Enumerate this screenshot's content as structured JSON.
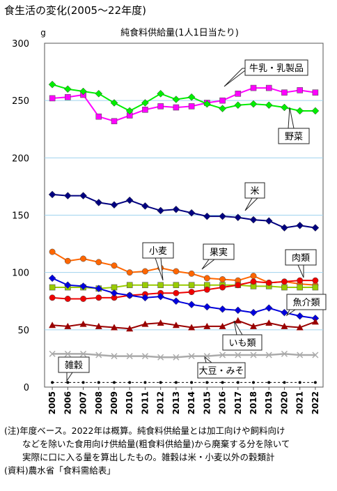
{
  "page_title": "食生活の変化(2005～22年度)",
  "notes": [
    "(注)年度ベース。2022年は概算。純食料供給量とは加工向けや飼料向け",
    "などを除いた食用向け供給量(粗食料供給量)から廃棄する分を除いて",
    "実際に口に入る量を算出したもの。雑穀は米・小麦以外の穀類計",
    "(資料)農水省「食料需給表」"
  ],
  "chart_data": {
    "type": "line",
    "title": "純食料供給量(1人1日当たり)",
    "ylabel": "g",
    "xlabel": "",
    "ylim": [
      0,
      300
    ],
    "yticks": [
      0,
      50,
      100,
      150,
      200,
      250,
      300
    ],
    "grid": true,
    "categories": [
      "2005",
      "2006",
      "2007",
      "2008",
      "2009",
      "2010",
      "2011",
      "2012",
      "2013",
      "2014",
      "2015",
      "2016",
      "2017",
      "2018",
      "2019",
      "2020",
      "2021",
      "2022"
    ],
    "series": [
      {
        "name": "牛乳・乳製品",
        "color": "#ff00ff",
        "marker": "square",
        "values": [
          252,
          253,
          255,
          236,
          232,
          237,
          242,
          245,
          244,
          245,
          248,
          250,
          256,
          261,
          261,
          257,
          259,
          257
        ]
      },
      {
        "name": "野菜",
        "color": "#00ee00",
        "marker": "diamond",
        "values": [
          264,
          260,
          258,
          256,
          248,
          241,
          248,
          256,
          251,
          253,
          247,
          243,
          246,
          247,
          246,
          244,
          241,
          241
        ]
      },
      {
        "name": "米",
        "color": "#000080",
        "marker": "diamond",
        "values": [
          168,
          167,
          167,
          161,
          159,
          163,
          158,
          154,
          155,
          152,
          149,
          149,
          148,
          146,
          145,
          139,
          141,
          139
        ]
      },
      {
        "name": "小麦",
        "color": "#ff6600",
        "marker": "circle",
        "values": [
          118,
          110,
          112,
          109,
          106,
          100,
          101,
          104,
          101,
          99,
          95,
          94,
          93,
          97,
          91,
          92,
          90,
          89
        ]
      },
      {
        "name": "果実",
        "color": "#99cc00",
        "marker": "square",
        "values": [
          87,
          87,
          87,
          86,
          87,
          89,
          89,
          89,
          89,
          89,
          89,
          89,
          89,
          88,
          88,
          87,
          87,
          87
        ]
      },
      {
        "name": "肉類",
        "color": "#ee0000",
        "marker": "circle",
        "values": [
          78,
          77,
          77,
          78,
          78,
          80,
          81,
          82,
          82,
          83,
          85,
          87,
          89,
          92,
          91,
          92,
          93,
          93
        ]
      },
      {
        "name": "魚介類",
        "color": "#0000dd",
        "marker": "diamond",
        "values": [
          95,
          89,
          88,
          86,
          82,
          80,
          78,
          79,
          75,
          72,
          70,
          68,
          67,
          65,
          69,
          65,
          62,
          60
        ]
      },
      {
        "name": "いも類",
        "color": "#990000",
        "marker": "triangle",
        "values": [
          54,
          53,
          55,
          53,
          52,
          51,
          55,
          56,
          54,
          52,
          53,
          53,
          58,
          53,
          56,
          53,
          52,
          57
        ]
      },
      {
        "name": "大豆・みそ",
        "color": "#aaaaaa",
        "marker": "x",
        "values": [
          29,
          29,
          29,
          28,
          27,
          27,
          27,
          26,
          26,
          27,
          27,
          28,
          28,
          28,
          28,
          29,
          28,
          28
        ]
      },
      {
        "name": "雑穀",
        "color": "#000000",
        "marker": "dot",
        "dashed": true,
        "values": [
          4,
          4,
          4,
          4,
          4,
          4,
          4,
          4,
          4,
          4,
          4,
          4,
          4,
          4,
          4,
          4,
          4,
          4
        ]
      }
    ]
  }
}
